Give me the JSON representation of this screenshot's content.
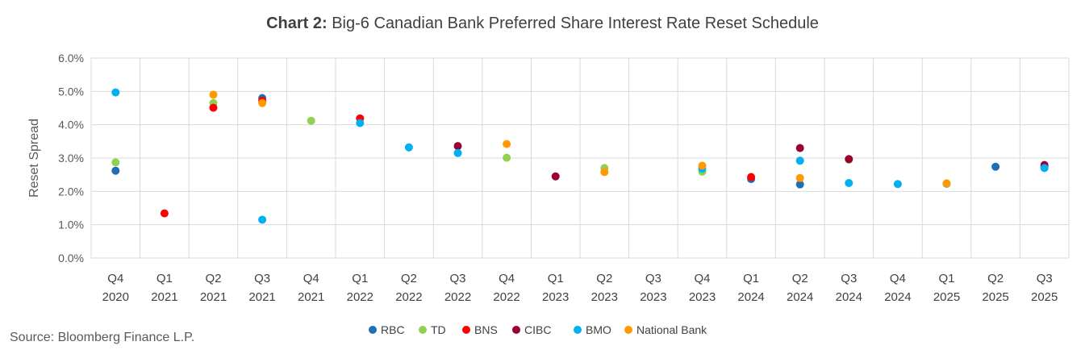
{
  "chart_data": {
    "type": "scatter",
    "title_prefix": "Chart 2:",
    "title": "Big-6 Canadian Bank Preferred Share Interest Rate Reset Schedule",
    "ylabel": "Reset Spread",
    "xlabel": "",
    "ylim": [
      0,
      6
    ],
    "yticks": [
      0,
      1,
      2,
      3,
      4,
      5,
      6
    ],
    "ytick_labels": [
      "0.0%",
      "1.0%",
      "2.0%",
      "3.0%",
      "4.0%",
      "5.0%",
      "6.0%"
    ],
    "categories": [
      [
        "Q4",
        "2020"
      ],
      [
        "Q1",
        "2021"
      ],
      [
        "Q2",
        "2021"
      ],
      [
        "Q3",
        "2021"
      ],
      [
        "Q4",
        "2021"
      ],
      [
        "Q1",
        "2022"
      ],
      [
        "Q2",
        "2022"
      ],
      [
        "Q3",
        "2022"
      ],
      [
        "Q4",
        "2022"
      ],
      [
        "Q1",
        "2023"
      ],
      [
        "Q2",
        "2023"
      ],
      [
        "Q3",
        "2023"
      ],
      [
        "Q4",
        "2023"
      ],
      [
        "Q1",
        "2024"
      ],
      [
        "Q2",
        "2024"
      ],
      [
        "Q3",
        "2024"
      ],
      [
        "Q4",
        "2024"
      ],
      [
        "Q1",
        "2025"
      ],
      [
        "Q2",
        "2025"
      ],
      [
        "Q3",
        "2025"
      ]
    ],
    "grid": true,
    "legend_position": "bottom",
    "series": [
      {
        "name": "RBC",
        "color": "#1F6FB5",
        "points": [
          [
            0,
            2.62
          ],
          [
            3,
            4.8
          ],
          [
            13,
            2.37
          ],
          [
            14,
            2.21
          ],
          [
            18,
            2.74
          ],
          [
            19,
            2.74
          ]
        ]
      },
      {
        "name": "TD",
        "color": "#92D050",
        "points": [
          [
            0,
            2.87
          ],
          [
            2,
            4.65
          ],
          [
            4,
            4.12
          ],
          [
            8,
            3.01
          ],
          [
            10,
            2.7
          ],
          [
            12,
            2.59
          ],
          [
            15,
            2.95
          ]
        ]
      },
      {
        "name": "BNS",
        "color": "#FF0000",
        "points": [
          [
            1,
            1.34
          ],
          [
            2,
            4.51
          ],
          [
            3,
            4.72
          ],
          [
            5,
            4.19
          ],
          [
            13,
            2.43
          ]
        ]
      },
      {
        "name": "CIBC",
        "color": "#990033",
        "points": [
          [
            7,
            3.36
          ],
          [
            9,
            2.45
          ],
          [
            14,
            3.3
          ],
          [
            15,
            2.97
          ],
          [
            19,
            2.79
          ]
        ]
      },
      {
        "name": "BMO",
        "color": "#00B0F0",
        "points": [
          [
            0,
            4.97
          ],
          [
            3,
            1.15
          ],
          [
            5,
            4.05
          ],
          [
            6,
            3.32
          ],
          [
            7,
            3.15
          ],
          [
            12,
            2.68
          ],
          [
            14,
            2.92
          ],
          [
            15,
            2.25
          ],
          [
            16,
            2.22
          ],
          [
            17,
            2.23
          ],
          [
            19,
            2.7
          ]
        ]
      },
      {
        "name": "National Bank",
        "color": "#FF9900",
        "points": [
          [
            2,
            4.9
          ],
          [
            3,
            4.65
          ],
          [
            8,
            3.42
          ],
          [
            10,
            2.58
          ],
          [
            12,
            2.77
          ],
          [
            14,
            2.4
          ],
          [
            17,
            2.24
          ]
        ]
      }
    ]
  },
  "source": "Source: Bloomberg Finance L.P."
}
